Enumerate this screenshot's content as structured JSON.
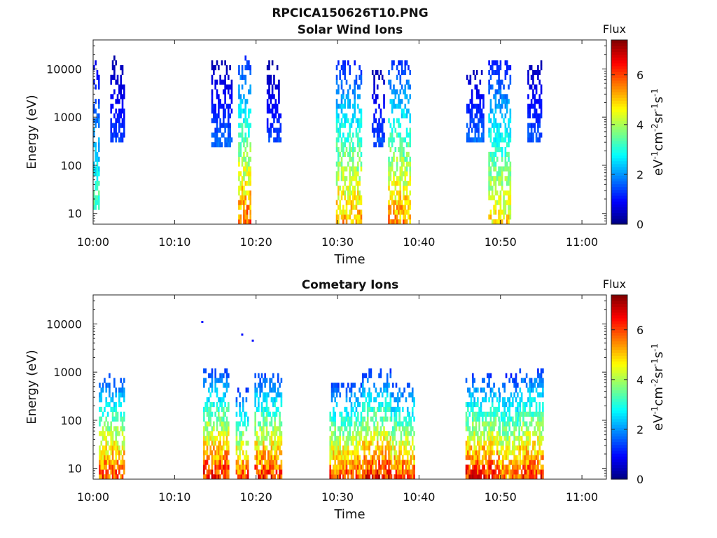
{
  "figure": {
    "filename": "RPCICA150626T10.PNG"
  },
  "colorbar": {
    "title": "Flux",
    "unit_label": "eV-1cm-2sr-1s-1",
    "range": [
      0,
      7.4
    ],
    "ticks": [
      0,
      2,
      4,
      6
    ],
    "colormap": "jet"
  },
  "chart_data": [
    {
      "type": "heatmap",
      "title": "Solar Wind Ions",
      "xlabel": "Time",
      "ylabel": "Energy (eV)",
      "xlim": [
        "10:00",
        "11:03"
      ],
      "ylim": [
        6,
        40000
      ],
      "yscale": "log",
      "xticks": [
        "10:00",
        "10:10",
        "10:20",
        "10:30",
        "10:40",
        "10:50",
        "11:00"
      ],
      "yticks": [
        10,
        100,
        1000,
        10000
      ],
      "grid": false,
      "bursts": [
        {
          "start_min": 0.0,
          "end_min": 0.7,
          "emin": 10,
          "emax": 12000,
          "peak_flux": 4.0
        },
        {
          "start_min": 2.1,
          "end_min": 3.8,
          "emin": 280,
          "emax": 16000,
          "peak_flux": 1.6
        },
        {
          "start_min": 14.5,
          "end_min": 16.9,
          "emin": 200,
          "emax": 12000,
          "peak_flux": 2.0
        },
        {
          "start_min": 17.8,
          "end_min": 19.3,
          "emin": 6,
          "emax": 16000,
          "peak_flux": 6.5
        },
        {
          "start_min": 21.3,
          "end_min": 22.9,
          "emin": 300,
          "emax": 12000,
          "peak_flux": 1.6
        },
        {
          "start_min": 29.8,
          "end_min": 32.9,
          "emin": 6,
          "emax": 15000,
          "peak_flux": 6.0
        },
        {
          "start_min": 34.2,
          "end_min": 35.8,
          "emin": 200,
          "emax": 9000,
          "peak_flux": 1.8
        },
        {
          "start_min": 36.2,
          "end_min": 38.9,
          "emin": 6,
          "emax": 15000,
          "peak_flux": 6.2
        },
        {
          "start_min": 45.8,
          "end_min": 48.0,
          "emin": 300,
          "emax": 9000,
          "peak_flux": 2.0
        },
        {
          "start_min": 48.5,
          "end_min": 51.3,
          "emin": 6,
          "emax": 15000,
          "peak_flux": 5.5
        },
        {
          "start_min": 53.3,
          "end_min": 55.0,
          "emin": 300,
          "emax": 14000,
          "peak_flux": 1.8
        }
      ]
    },
    {
      "type": "heatmap",
      "title": "Cometary Ions",
      "xlabel": "Time",
      "ylabel": "Energy (eV)",
      "xlim": [
        "10:00",
        "11:03"
      ],
      "ylim": [
        6,
        40000
      ],
      "yscale": "log",
      "xticks": [
        "10:00",
        "10:10",
        "10:20",
        "10:30",
        "10:40",
        "10:50",
        "11:00"
      ],
      "yticks": [
        10,
        100,
        1000,
        10000
      ],
      "grid": false,
      "isolated_points": [
        {
          "time_min": 13.4,
          "energy": 11000,
          "flux": 1.0
        },
        {
          "time_min": 18.3,
          "energy": 6000,
          "flux": 1.0
        },
        {
          "time_min": 19.6,
          "energy": 4500,
          "flux": 1.0
        }
      ],
      "bursts": [
        {
          "start_min": 0.7,
          "end_min": 3.8,
          "emin": 6,
          "emax": 900,
          "peak_flux": 6.8
        },
        {
          "start_min": 13.5,
          "end_min": 16.5,
          "emin": 6,
          "emax": 1100,
          "peak_flux": 7.2
        },
        {
          "start_min": 17.5,
          "end_min": 19.0,
          "emin": 6,
          "emax": 400,
          "peak_flux": 6.8
        },
        {
          "start_min": 19.8,
          "end_min": 23.0,
          "emin": 6,
          "emax": 900,
          "peak_flux": 7.0
        },
        {
          "start_min": 29.0,
          "end_min": 33.0,
          "emin": 6,
          "emax": 600,
          "peak_flux": 6.8
        },
        {
          "start_min": 33.0,
          "end_min": 36.5,
          "emin": 6,
          "emax": 1000,
          "peak_flux": 7.2
        },
        {
          "start_min": 36.5,
          "end_min": 39.5,
          "emin": 6,
          "emax": 600,
          "peak_flux": 6.8
        },
        {
          "start_min": 45.7,
          "end_min": 49.8,
          "emin": 6,
          "emax": 800,
          "peak_flux": 7.2
        },
        {
          "start_min": 49.8,
          "end_min": 52.3,
          "emin": 6,
          "emax": 800,
          "peak_flux": 6.5
        },
        {
          "start_min": 52.3,
          "end_min": 55.3,
          "emin": 6,
          "emax": 1100,
          "peak_flux": 7.0
        }
      ]
    }
  ]
}
